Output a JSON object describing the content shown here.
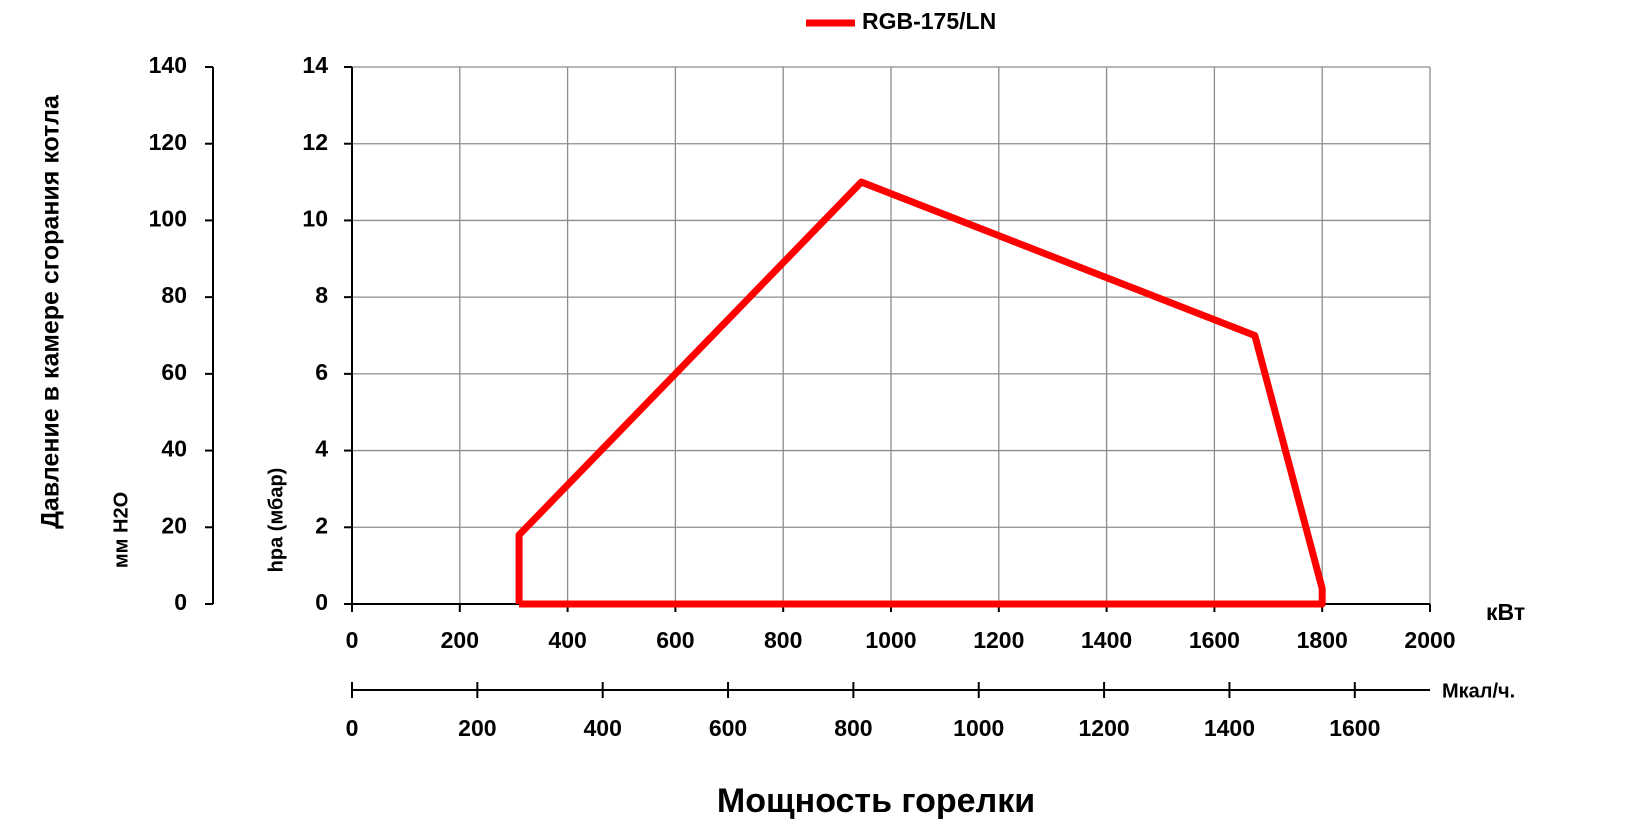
{
  "chart_data": {
    "type": "line",
    "x_title": "Мощность горелки",
    "x_unit": "кВт",
    "x2_unit": "Мкал/ч.",
    "y_title": "hpa (мбар)",
    "y2_title": "Давление в камере сгорания котла",
    "y2_unit": "мм H2O",
    "xlim": [
      0,
      2000
    ],
    "xticks": [
      0,
      200,
      400,
      600,
      800,
      1000,
      1200,
      1400,
      1600,
      1800,
      2000
    ],
    "x2lim": [
      0,
      1720
    ],
    "x2ticks": [
      0,
      200,
      400,
      600,
      800,
      1000,
      1200,
      1400,
      1600
    ],
    "ylim": [
      0,
      14
    ],
    "yticks": [
      0,
      2,
      4,
      6,
      8,
      10,
      12,
      14
    ],
    "y2lim": [
      0,
      140
    ],
    "y2ticks": [
      0,
      20,
      40,
      60,
      80,
      100,
      120,
      140
    ],
    "grid": true,
    "legend": "top",
    "series": [
      {
        "name": "RGB-175/LN",
        "color": "#ff0000",
        "x": [
          310,
          310,
          945,
          1675,
          1800,
          1800,
          310
        ],
        "values": [
          0,
          1.8,
          11,
          7,
          0.4,
          0,
          0
        ]
      }
    ]
  }
}
